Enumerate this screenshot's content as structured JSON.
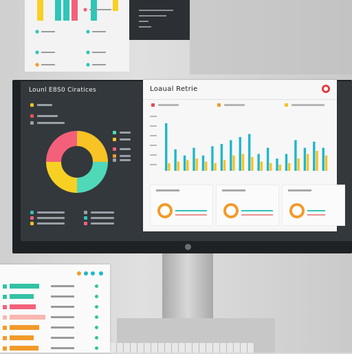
{
  "dashboard": {
    "left_panel": {
      "title": "Lounl E8S0 Ciratices",
      "donut": [
        {
          "share": 0.25,
          "color": "#f7c325"
        },
        {
          "share": 0.25,
          "color": "#4fd9b8"
        },
        {
          "share": 0.25,
          "color": "#f7d024"
        },
        {
          "share": 0.25,
          "color": "#f4607a"
        }
      ],
      "legend_colors": [
        "#f4c323",
        "#e8564a"
      ],
      "right_legend_colors": [
        "#4fd9b8",
        "#f7c325",
        "#f4607a",
        "#f29a2a",
        "#9aa0a6"
      ],
      "bottom_legend_colors": [
        "#33c2b4",
        "#f4607a",
        "#f4c323",
        "#9aa0a6"
      ]
    },
    "right_panel": {
      "title": "Loaual Retrie",
      "legend_colors": [
        "#e84c4c",
        "#f29a2a",
        "#f4c323"
      ],
      "chart_data": {
        "type": "bar",
        "series": [
          {
            "color": "#1fb7c9",
            "values": [
              62,
              28,
              20,
              30,
              20,
              32,
              35,
              40,
              44,
              48,
              22,
              30,
              16,
              22,
              40,
              30,
              38,
              30
            ]
          },
          {
            "color": "#f4c323",
            "values": [
              10,
              12,
              14,
              16,
              12,
              10,
              14,
              20,
              22,
              18,
              12,
              10,
              8,
              10,
              16,
              22,
              26,
              20
            ]
          }
        ],
        "ylim": [
          0,
          70
        ],
        "grid": false
      },
      "cards": [
        {
          "ring_color": "#f29a2a",
          "lines": [
            "#2dc6b8",
            "#e89090"
          ]
        },
        {
          "ring_color": "#f29a2a",
          "lines": [
            "#2dc6b8",
            "#e89090"
          ]
        },
        {
          "ring_color": "#f29a2a",
          "lines": [
            "#2dc6b8",
            "#e89090"
          ]
        }
      ]
    }
  },
  "tablet": {
    "dot_colors": [
      "#f29a2a",
      "#1fb7c9",
      "#1fb7c9",
      "#1fb7c9"
    ],
    "rows": [
      {
        "color": "#33c2a4",
        "fill": 0.72
      },
      {
        "color": "#33c2a4",
        "fill": 0.58
      },
      {
        "color": "#f4607a",
        "fill": 0.64
      },
      {
        "color": "#f7b8b0",
        "fill": 0.86
      },
      {
        "color": "#f29a2a",
        "fill": 0.72
      },
      {
        "color": "#f29a2a",
        "fill": 0.58
      },
      {
        "color": "#f29a2a",
        "fill": 0.7
      }
    ]
  },
  "top_panel": {
    "chart_data": {
      "type": "bar",
      "series": [
        {
          "color": "#f7d024",
          "values": [
            30
          ]
        },
        {
          "color": "#2dc6b8",
          "values": [
            30
          ]
        },
        {
          "color": "#2dc6b8",
          "values": [
            30
          ]
        },
        {
          "color": "#f4607a",
          "values": [
            30
          ]
        },
        {
          "color": "#2dc6b8",
          "values": [
            30
          ]
        }
      ]
    }
  }
}
